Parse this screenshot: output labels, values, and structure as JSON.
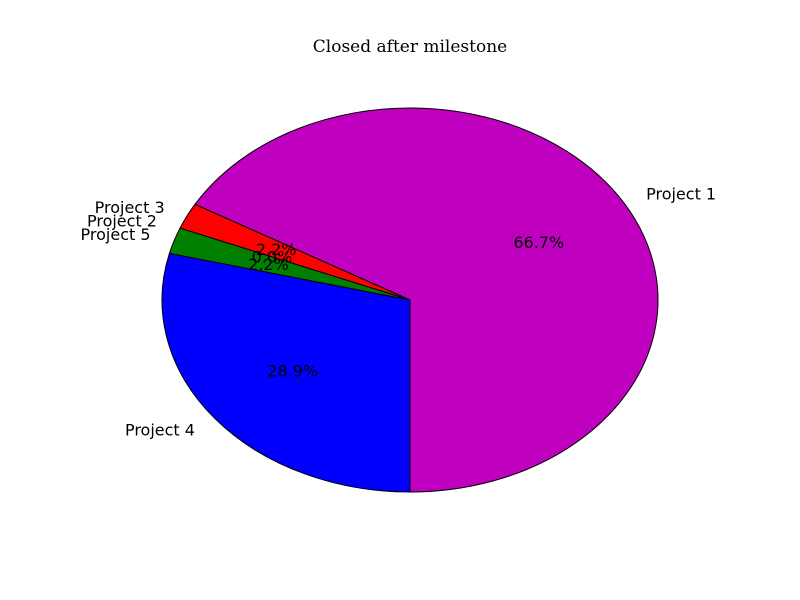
{
  "chart_data": {
    "type": "pie",
    "title": "Closed after milestone",
    "categories": [
      "Project 1",
      "Project 3",
      "Project 2",
      "Project 5",
      "Project 4"
    ],
    "values": [
      66.7,
      2.2,
      0.0,
      2.2,
      28.9
    ],
    "labels": [
      "66.7%",
      "2.2%",
      "0.0%",
      "2.2%",
      "28.9%"
    ],
    "colors": [
      "#bf00bf",
      "#ff0000",
      "#00ffff",
      "#008000",
      "#0000ff"
    ],
    "slice_edge_color": "#000000",
    "start_angle_deg": 270,
    "direction": "counterclockwise",
    "legend": "none"
  }
}
